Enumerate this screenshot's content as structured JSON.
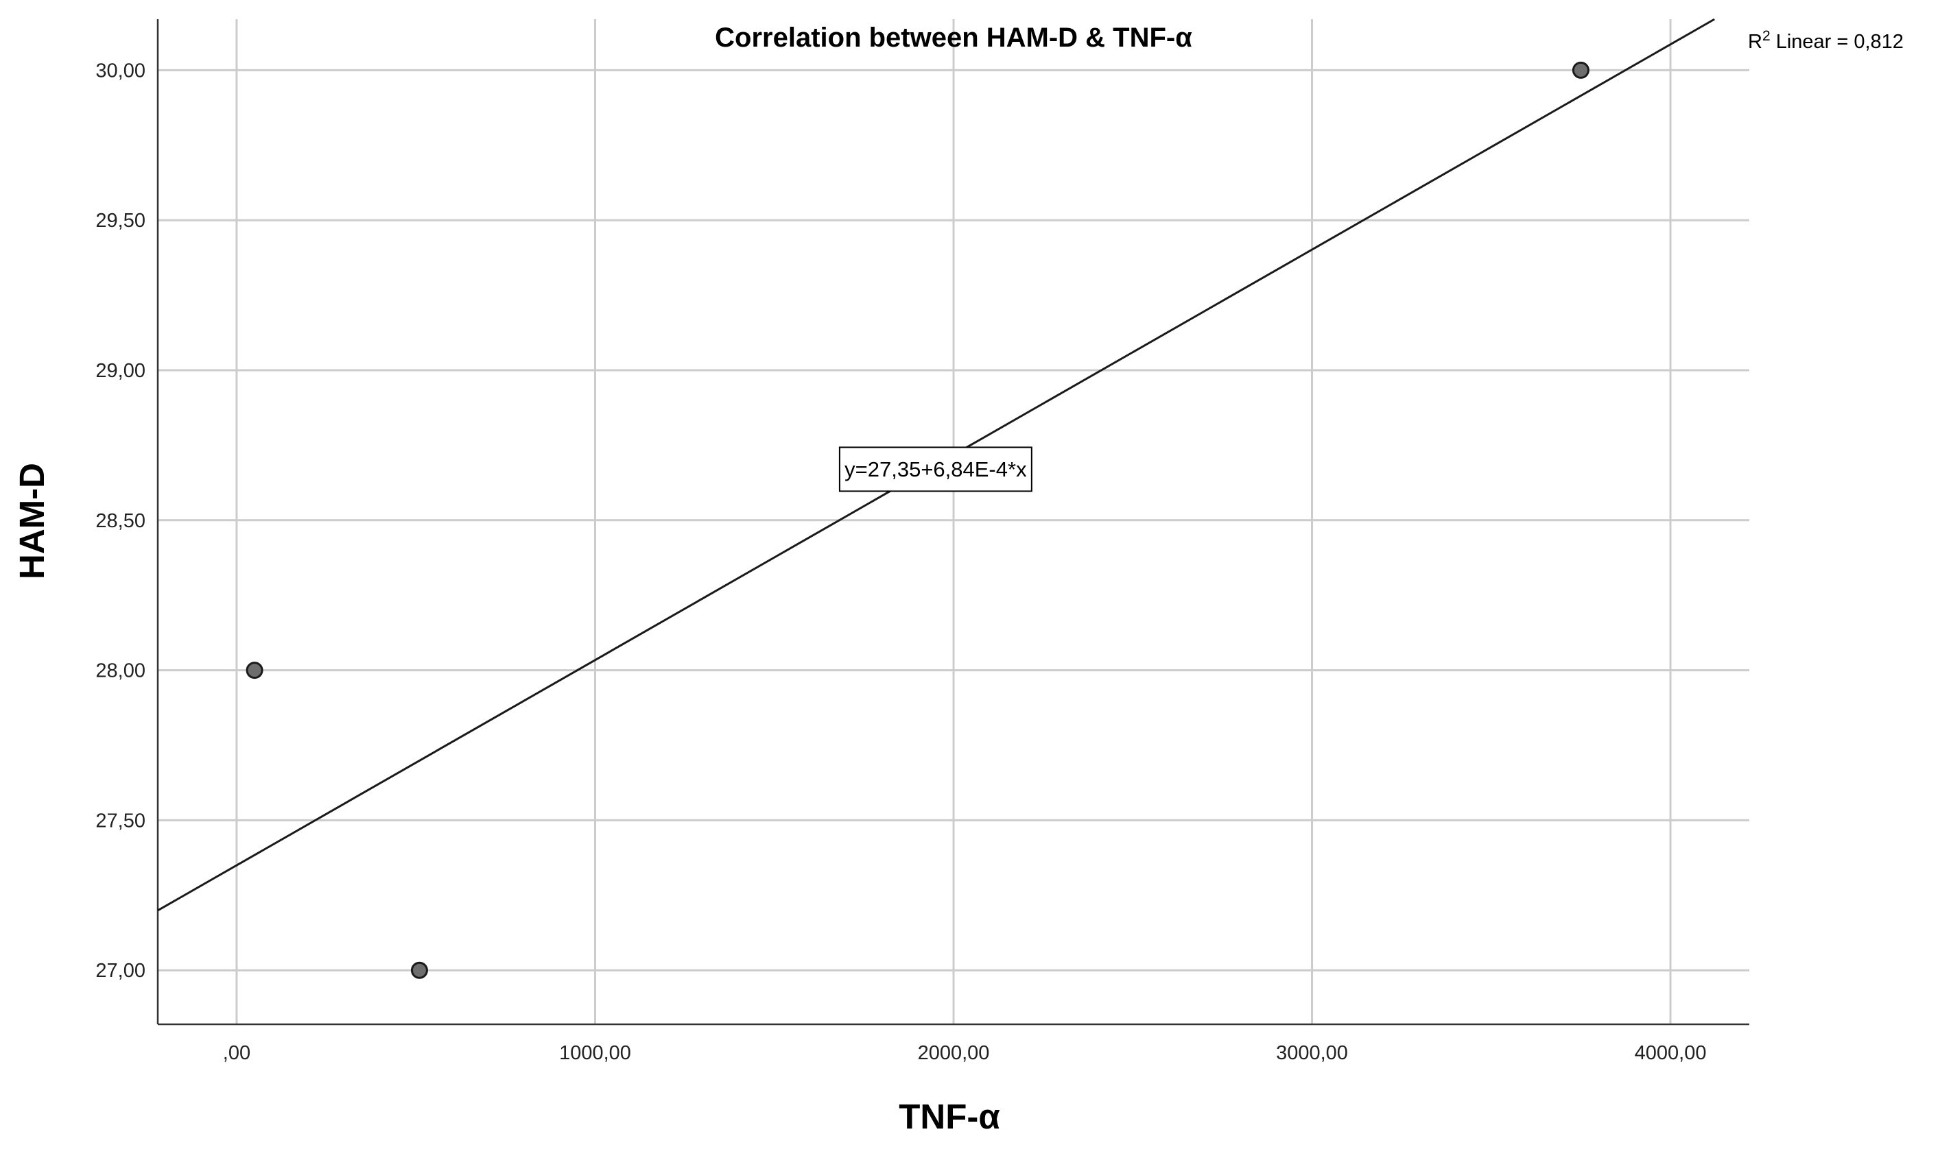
{
  "chart_data": {
    "type": "scatter",
    "title": "Correlation between HAM-D & TNF-α",
    "xlabel": "TNF-α",
    "ylabel": "HAM-D",
    "xlim": [
      -220,
      4220
    ],
    "ylim": [
      26.82,
      30.17
    ],
    "x_ticks": [
      0,
      1000,
      2000,
      3000,
      4000
    ],
    "x_tick_labels": [
      ",00",
      "1000,00",
      "2000,00",
      "3000,00",
      "4000,00"
    ],
    "y_ticks": [
      27.0,
      27.5,
      28.0,
      28.5,
      29.0,
      29.5,
      30.0
    ],
    "y_tick_labels": [
      "27,00",
      "27,50",
      "28,00",
      "28,50",
      "29,00",
      "29,50",
      "30,00"
    ],
    "grid": true,
    "points": [
      {
        "x": 50,
        "y": 28.0
      },
      {
        "x": 510,
        "y": 27.0
      },
      {
        "x": 3750,
        "y": 30.0
      }
    ],
    "fit_line": {
      "intercept": 27.35,
      "slope": 0.000684,
      "equation_label": "y=27,35+6,84E-4*x",
      "equation_label_position": {
        "x": 1950,
        "y": 28.67
      }
    },
    "r2_label": {
      "prefix": "R",
      "superscript": "2",
      "text": " Linear = 0,812"
    },
    "colors": {
      "point_fill": "#6e6e6e",
      "point_stroke": "#1a1a1a",
      "grid": "#cccccc",
      "fit_line": "#1a1a1a",
      "axis": "#333333"
    }
  }
}
